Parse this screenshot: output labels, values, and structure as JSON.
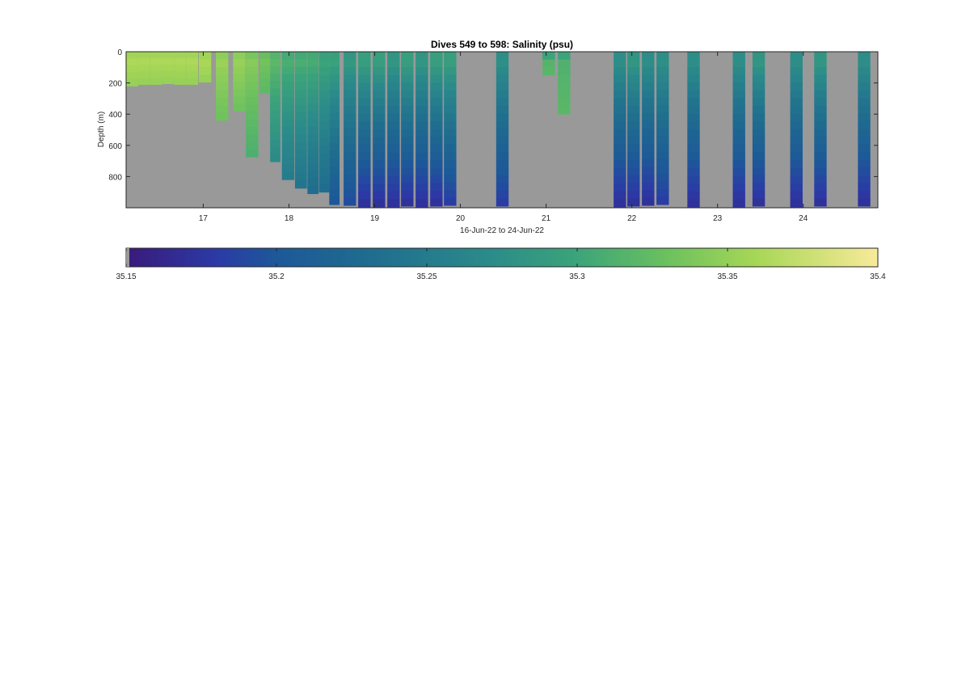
{
  "chart_data": {
    "type": "heatmap",
    "title": "Dives 549 to 598: Salinity (psu)",
    "xlabel": "16-Jun-22 to 24-Jun-22",
    "ylabel": "Depth (m)",
    "xlim": [
      16.1,
      24.87
    ],
    "ylim": [
      0,
      1000
    ],
    "y_reversed": true,
    "x_ticks": [
      17,
      18,
      19,
      20,
      21,
      22,
      23,
      24
    ],
    "x_tick_labels": [
      "17",
      "18",
      "19",
      "20",
      "21",
      "22",
      "23",
      "24"
    ],
    "y_ticks": [
      0,
      200,
      400,
      600,
      800
    ],
    "y_tick_labels": [
      "0",
      "200",
      "400",
      "600",
      "800"
    ],
    "colormap": "parula-like",
    "missing_color": "#999999",
    "colorbar": {
      "limits": [
        35.15,
        35.4
      ],
      "ticks": [
        35.15,
        35.2,
        35.25,
        35.3,
        35.35,
        35.4
      ],
      "tick_labels": [
        "35.15",
        "35.2",
        "35.25",
        "35.3",
        "35.35",
        "35.4"
      ],
      "stops": [
        {
          "value": 35.15,
          "color": "#3a1a7a"
        },
        {
          "value": 35.18,
          "color": "#2b3aa6"
        },
        {
          "value": 35.2,
          "color": "#1d5899"
        },
        {
          "value": 35.23,
          "color": "#1f6c8f"
        },
        {
          "value": 35.27,
          "color": "#2b8a8a"
        },
        {
          "value": 35.3,
          "color": "#3ba47a"
        },
        {
          "value": 35.33,
          "color": "#6cc15e"
        },
        {
          "value": 35.36,
          "color": "#a8d756"
        },
        {
          "value": 35.4,
          "color": "#f8ea9a"
        }
      ]
    },
    "profiles": [
      {
        "x": 16.17,
        "max_depth": 220,
        "s_top": 35.37,
        "s_bot": 35.35
      },
      {
        "x": 16.31,
        "max_depth": 210,
        "s_top": 35.37,
        "s_bot": 35.35
      },
      {
        "x": 16.45,
        "max_depth": 210,
        "s_top": 35.37,
        "s_bot": 35.35
      },
      {
        "x": 16.59,
        "max_depth": 205,
        "s_top": 35.37,
        "s_bot": 35.35
      },
      {
        "x": 16.73,
        "max_depth": 210,
        "s_top": 35.37,
        "s_bot": 35.35
      },
      {
        "x": 16.87,
        "max_depth": 210,
        "s_top": 35.37,
        "s_bot": 35.35
      },
      {
        "x": 17.02,
        "max_depth": 195,
        "s_top": 35.37,
        "s_bot": 35.35
      },
      {
        "x": 17.22,
        "max_depth": 440,
        "s_top": 35.36,
        "s_bot": 35.33
      },
      {
        "x": 17.42,
        "max_depth": 380,
        "s_top": 35.36,
        "s_bot": 35.33
      },
      {
        "x": 17.57,
        "max_depth": 675,
        "s_top": 35.35,
        "s_bot": 35.31
      },
      {
        "x": 17.72,
        "max_depth": 265,
        "s_top": 35.34,
        "s_bot": 35.32
      },
      {
        "x": 17.84,
        "max_depth": 705,
        "s_top": 35.33,
        "s_bot": 35.27
      },
      {
        "x": 17.99,
        "max_depth": 820,
        "s_top": 35.32,
        "s_bot": 35.25
      },
      {
        "x": 18.14,
        "max_depth": 875,
        "s_top": 35.32,
        "s_bot": 35.24
      },
      {
        "x": 18.28,
        "max_depth": 910,
        "s_top": 35.32,
        "s_bot": 35.23
      },
      {
        "x": 18.41,
        "max_depth": 900,
        "s_top": 35.31,
        "s_bot": 35.23
      },
      {
        "x": 18.53,
        "max_depth": 980,
        "s_top": 35.31,
        "s_bot": 35.2
      },
      {
        "x": 18.71,
        "max_depth": 985,
        "s_top": 35.3,
        "s_bot": 35.19
      },
      {
        "x": 18.88,
        "max_depth": 995,
        "s_top": 35.31,
        "s_bot": 35.17
      },
      {
        "x": 19.05,
        "max_depth": 995,
        "s_top": 35.31,
        "s_bot": 35.17
      },
      {
        "x": 19.22,
        "max_depth": 995,
        "s_top": 35.3,
        "s_bot": 35.17
      },
      {
        "x": 19.38,
        "max_depth": 990,
        "s_top": 35.31,
        "s_bot": 35.17
      },
      {
        "x": 19.55,
        "max_depth": 995,
        "s_top": 35.3,
        "s_bot": 35.17
      },
      {
        "x": 19.72,
        "max_depth": 990,
        "s_top": 35.31,
        "s_bot": 35.17
      },
      {
        "x": 19.88,
        "max_depth": 985,
        "s_top": 35.31,
        "s_bot": 35.18
      },
      {
        "x": 20.49,
        "max_depth": 990,
        "s_top": 35.29,
        "s_bot": 35.18
      },
      {
        "x": 21.03,
        "max_depth": 150,
        "s_top": 35.31,
        "s_bot": 35.32
      },
      {
        "x": 21.21,
        "max_depth": 400,
        "s_top": 35.31,
        "s_bot": 35.32
      },
      {
        "x": 21.86,
        "max_depth": 995,
        "s_top": 35.29,
        "s_bot": 35.17
      },
      {
        "x": 22.02,
        "max_depth": 990,
        "s_top": 35.3,
        "s_bot": 35.17
      },
      {
        "x": 22.19,
        "max_depth": 985,
        "s_top": 35.29,
        "s_bot": 35.17
      },
      {
        "x": 22.36,
        "max_depth": 980,
        "s_top": 35.29,
        "s_bot": 35.18
      },
      {
        "x": 22.72,
        "max_depth": 995,
        "s_top": 35.29,
        "s_bot": 35.17
      },
      {
        "x": 23.25,
        "max_depth": 995,
        "s_top": 35.29,
        "s_bot": 35.17
      },
      {
        "x": 23.48,
        "max_depth": 990,
        "s_top": 35.3,
        "s_bot": 35.17
      },
      {
        "x": 23.92,
        "max_depth": 995,
        "s_top": 35.29,
        "s_bot": 35.17
      },
      {
        "x": 24.2,
        "max_depth": 990,
        "s_top": 35.3,
        "s_bot": 35.17
      },
      {
        "x": 24.71,
        "max_depth": 990,
        "s_top": 35.29,
        "s_bot": 35.17
      }
    ]
  }
}
